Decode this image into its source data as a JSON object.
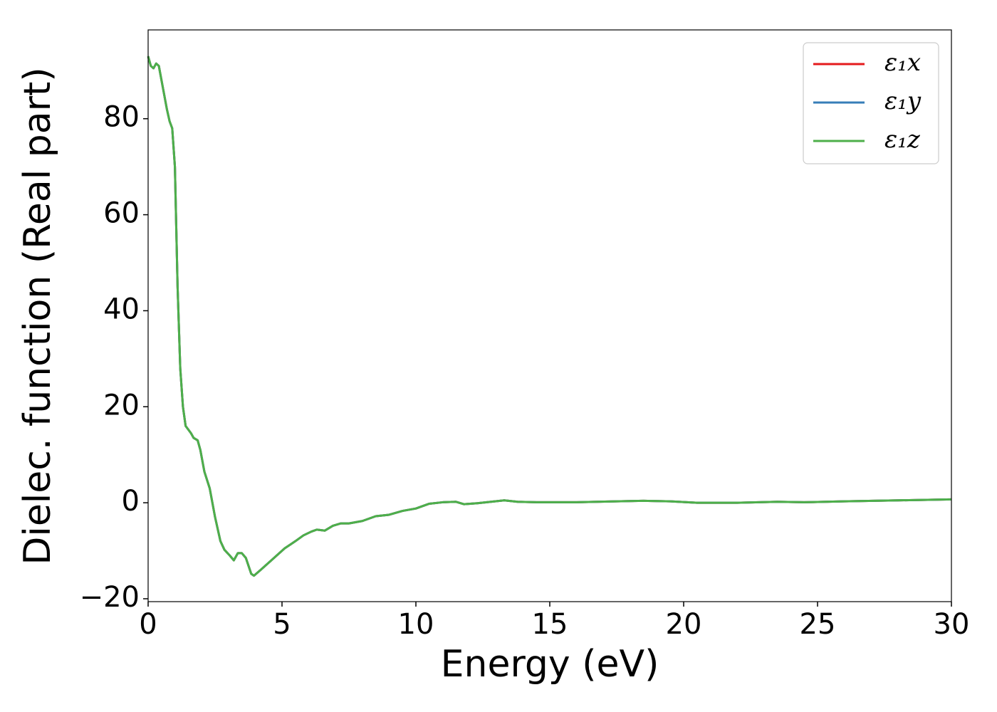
{
  "chart_data": {
    "type": "line",
    "xlabel": "Energy (eV)",
    "ylabel": "Dielec. function (Real part)",
    "x": [
      0,
      0.1,
      0.2,
      0.3,
      0.4,
      0.5,
      0.6,
      0.7,
      0.8,
      0.9,
      1.0,
      1.1,
      1.2,
      1.3,
      1.4,
      1.6,
      1.7,
      1.85,
      1.95,
      2.1,
      2.3,
      2.5,
      2.7,
      2.85,
      3.05,
      3.2,
      3.35,
      3.5,
      3.65,
      3.85,
      3.95,
      4.2,
      4.5,
      4.8,
      5.1,
      5.5,
      5.8,
      6.1,
      6.3,
      6.6,
      6.9,
      7.2,
      7.5,
      8,
      8.5,
      9,
      9.5,
      10,
      10.5,
      11,
      11.5,
      11.8,
      12.3,
      12.8,
      13.3,
      13.8,
      14.5,
      16,
      17.5,
      18.5,
      19.5,
      20.5,
      22,
      23.5,
      24.5,
      26,
      28,
      30
    ],
    "series": [
      {
        "name": "ε₁x",
        "color": "#e41a1c",
        "values": [
          93,
          91,
          90.5,
          91.5,
          91,
          88,
          85,
          82,
          79.5,
          78,
          70,
          45,
          28,
          20,
          16,
          14.5,
          13.5,
          13,
          11,
          6.5,
          3,
          -3,
          -8,
          -9.8,
          -11,
          -12,
          -10.5,
          -10.5,
          -11.5,
          -14.8,
          -15.2,
          -14,
          -12.5,
          -11,
          -9.5,
          -8,
          -6.8,
          -6,
          -5.6,
          -5.8,
          -4.8,
          -4.3,
          -4.3,
          -3.8,
          -2.8,
          -2.5,
          -1.7,
          -1.2,
          -0.2,
          0.1,
          0.2,
          -0.3,
          -0.1,
          0.2,
          0.5,
          0.2,
          0.1,
          0.1,
          0.3,
          0.4,
          0.3,
          0,
          0,
          0.2,
          0.1,
          0.3,
          0.5,
          0.7
        ]
      },
      {
        "name": "ε₁y",
        "color": "#377eb8",
        "values": [
          93,
          91,
          90.5,
          91.5,
          91,
          88,
          85,
          82,
          79.5,
          78,
          70,
          45,
          28,
          20,
          16,
          14.5,
          13.5,
          13,
          11,
          6.5,
          3,
          -3,
          -8,
          -9.8,
          -11,
          -12,
          -10.5,
          -10.5,
          -11.5,
          -14.8,
          -15.2,
          -14,
          -12.5,
          -11,
          -9.5,
          -8,
          -6.8,
          -6,
          -5.6,
          -5.8,
          -4.8,
          -4.3,
          -4.3,
          -3.8,
          -2.8,
          -2.5,
          -1.7,
          -1.2,
          -0.2,
          0.1,
          0.2,
          -0.3,
          -0.1,
          0.2,
          0.5,
          0.2,
          0.1,
          0.1,
          0.3,
          0.4,
          0.3,
          0,
          0,
          0.2,
          0.1,
          0.3,
          0.5,
          0.7
        ]
      },
      {
        "name": "ε₁z",
        "color": "#4daf4a",
        "values": [
          93,
          91,
          90.5,
          91.5,
          91,
          88,
          85,
          82,
          79.5,
          78,
          70,
          45,
          28,
          20,
          16,
          14.5,
          13.5,
          13,
          11,
          6.5,
          3,
          -3,
          -8,
          -9.8,
          -11,
          -12,
          -10.5,
          -10.5,
          -11.5,
          -14.8,
          -15.2,
          -14,
          -12.5,
          -11,
          -9.5,
          -8,
          -6.8,
          -6,
          -5.6,
          -5.8,
          -4.8,
          -4.3,
          -4.3,
          -3.8,
          -2.8,
          -2.5,
          -1.7,
          -1.2,
          -0.2,
          0.1,
          0.2,
          -0.3,
          -0.1,
          0.2,
          0.5,
          0.2,
          0.1,
          0.1,
          0.3,
          0.4,
          0.3,
          0,
          0,
          0.2,
          0.1,
          0.3,
          0.5,
          0.7
        ]
      }
    ],
    "xlim": [
      0,
      30
    ],
    "xticks": [
      0,
      5,
      10,
      15,
      20,
      25,
      30
    ],
    "ylim": [
      -20.6,
      98.5
    ],
    "yticks": [
      {
        "value": -20,
        "label": "−20"
      },
      0,
      20,
      40,
      60,
      80
    ],
    "legend": "upper right",
    "grid": false
  }
}
